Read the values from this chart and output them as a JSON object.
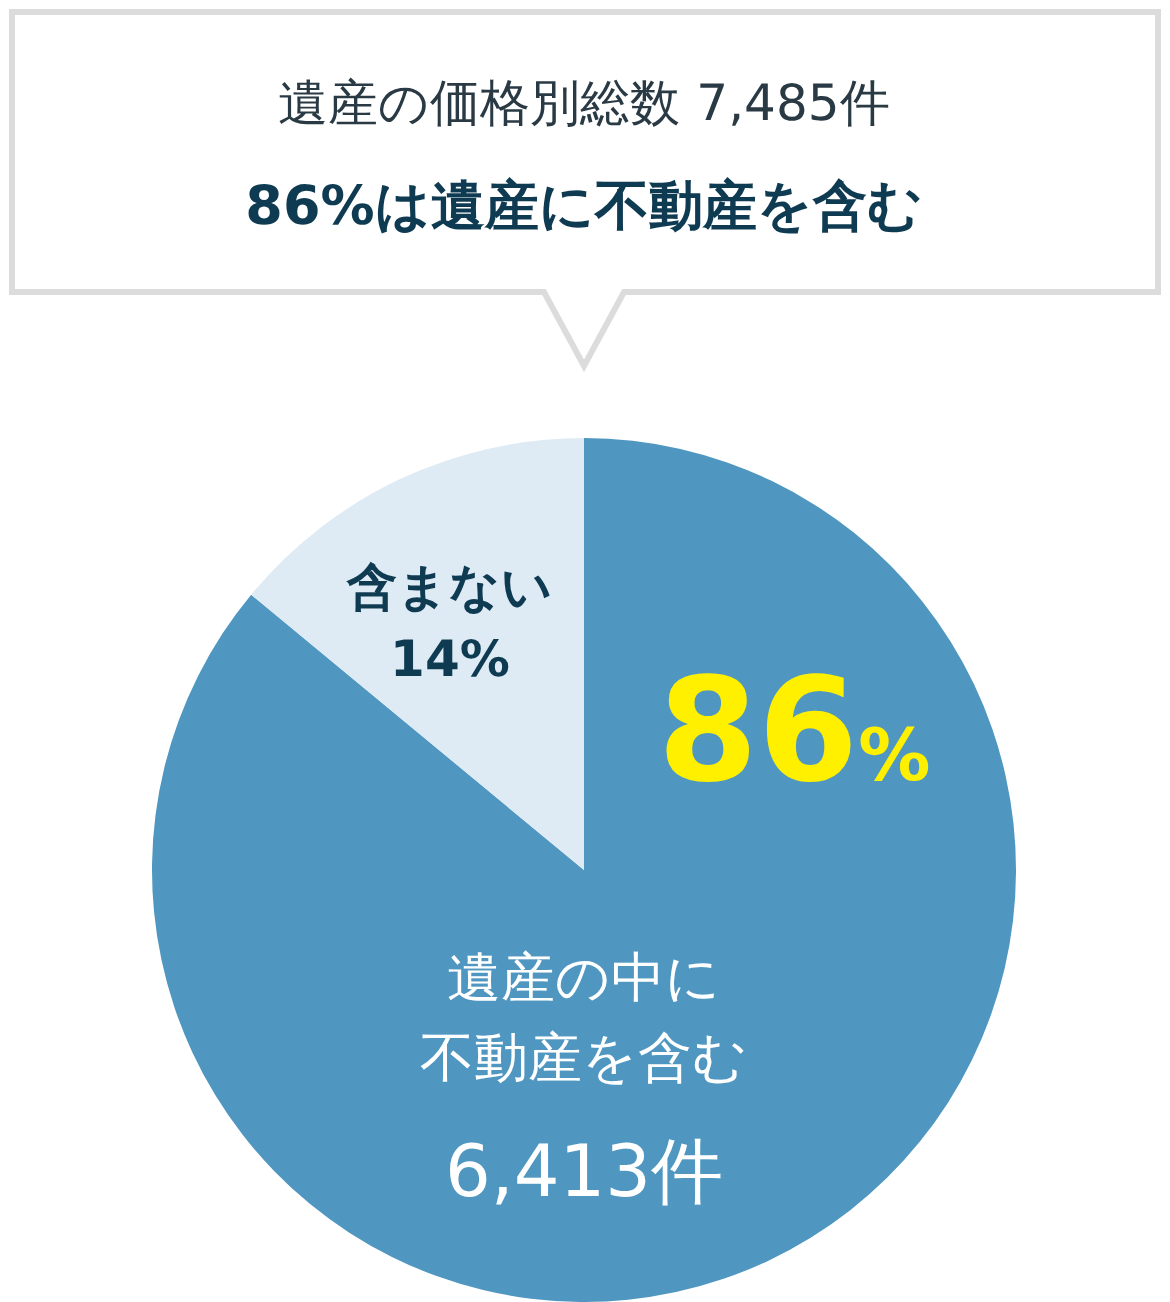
{
  "chart_data": {
    "type": "pie",
    "title": "遺産の価格別総数 7,485件",
    "subtitle": "86%は遺産に不動産を含む",
    "categories": [
      "遺産の中に不動産を含む",
      "含まない"
    ],
    "values": [
      86,
      14
    ],
    "colors": [
      "#4f97c0",
      "#deebf4"
    ],
    "value_labels": [
      "86%",
      "14%"
    ],
    "annotations": [
      "6,413件"
    ],
    "legend": false
  }
}
